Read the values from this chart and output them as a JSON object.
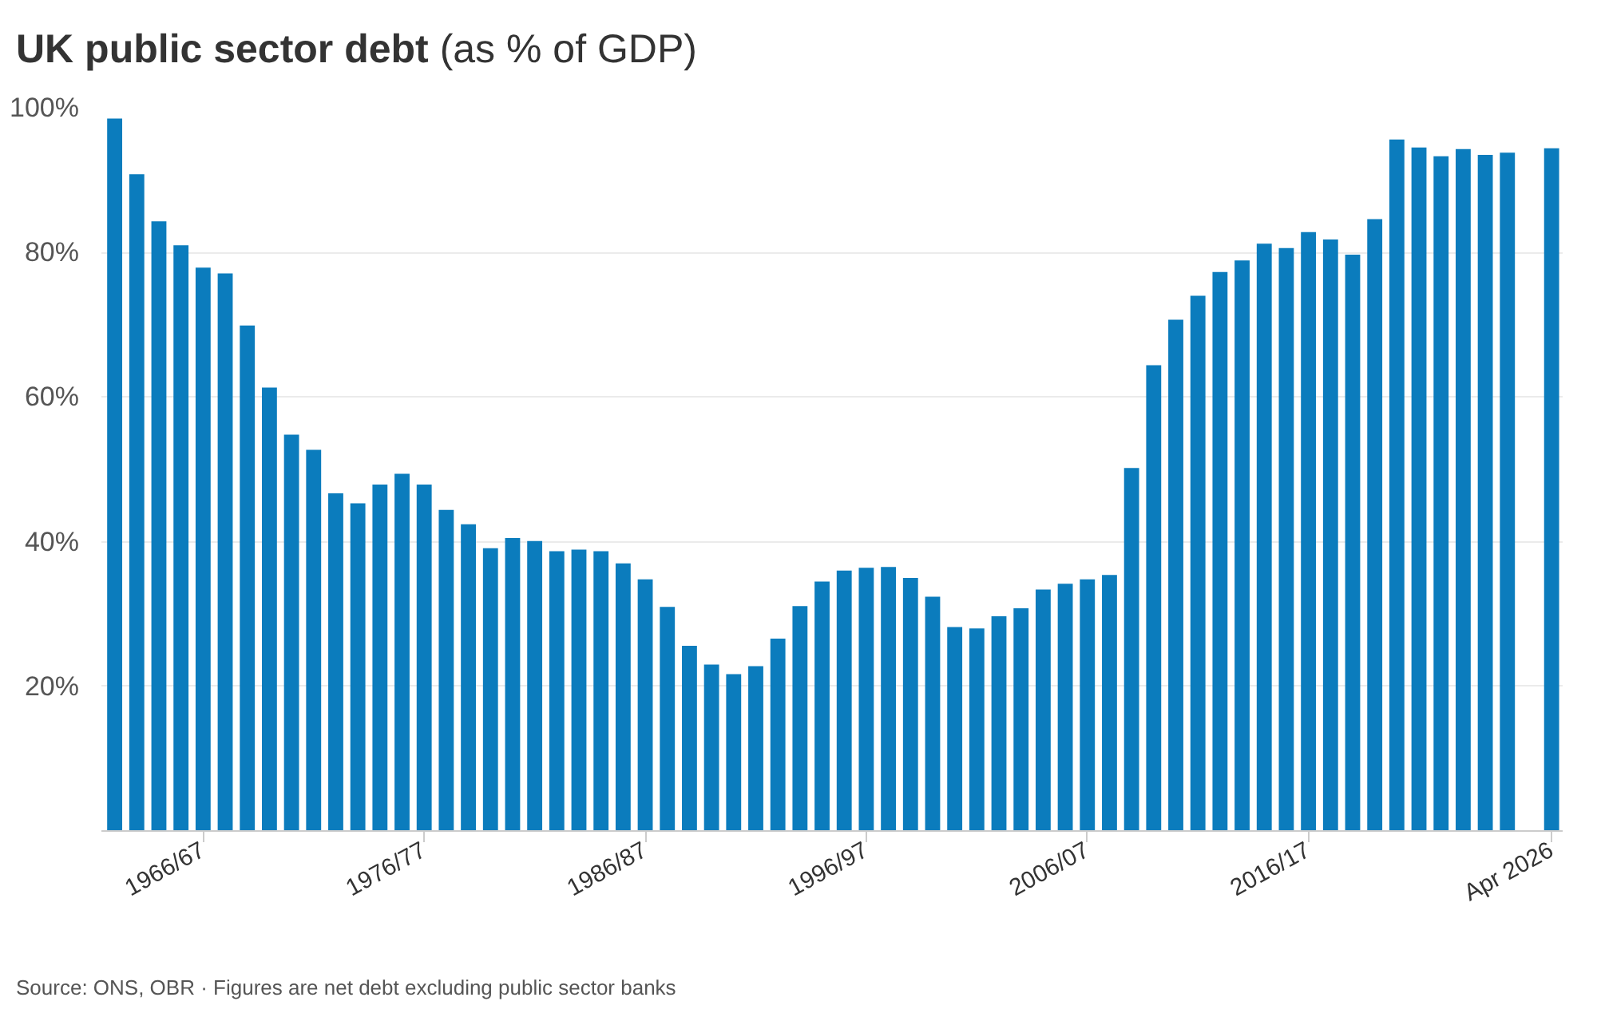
{
  "chart_data": {
    "type": "bar",
    "title": "UK public sector debt",
    "subtitle": "(as % of GDP)",
    "annotations": [
      "Source: ONS, OBR · Figures are net debt excluding public sector banks"
    ],
    "categories": [
      null,
      null,
      null,
      null,
      "1966/67",
      null,
      null,
      null,
      null,
      null,
      null,
      null,
      null,
      null,
      "1976/77",
      null,
      null,
      null,
      null,
      null,
      null,
      null,
      null,
      null,
      "1986/87",
      null,
      null,
      null,
      null,
      null,
      null,
      null,
      null,
      null,
      "1996/97",
      null,
      null,
      null,
      null,
      null,
      null,
      null,
      null,
      null,
      "2006/07",
      null,
      null,
      null,
      null,
      null,
      null,
      null,
      null,
      null,
      "2016/17",
      null,
      null,
      null,
      null,
      null,
      null,
      null,
      null,
      null,
      null,
      "Apr 2026"
    ],
    "values": [
      98.5,
      90.8,
      84.3,
      81.0,
      77.9,
      77.1,
      69.9,
      61.3,
      54.8,
      52.7,
      46.7,
      45.3,
      47.9,
      49.4,
      47.9,
      44.4,
      42.4,
      39.1,
      40.5,
      40.1,
      38.7,
      38.9,
      38.7,
      37.0,
      34.8,
      31.0,
      25.6,
      23.0,
      21.7,
      22.8,
      26.6,
      31.1,
      34.5,
      36.0,
      36.4,
      36.5,
      35.0,
      32.4,
      28.2,
      28.0,
      29.7,
      30.8,
      33.4,
      34.2,
      34.8,
      35.4,
      50.2,
      64.4,
      70.7,
      74.0,
      77.3,
      78.9,
      81.2,
      80.6,
      82.8,
      81.8,
      79.7,
      84.6,
      95.6,
      94.5,
      93.3,
      94.3,
      93.5,
      93.8,
      null,
      94.4
    ],
    "color": "#0b7cbd",
    "ylim": [
      0,
      100
    ],
    "yticks": [
      {
        "value": 20,
        "label": "20%"
      },
      {
        "value": 40,
        "label": "40%"
      },
      {
        "value": 60,
        "label": "60%"
      },
      {
        "value": 80,
        "label": "80%"
      },
      {
        "value": 100,
        "label": "100%"
      }
    ],
    "grid": "y"
  }
}
